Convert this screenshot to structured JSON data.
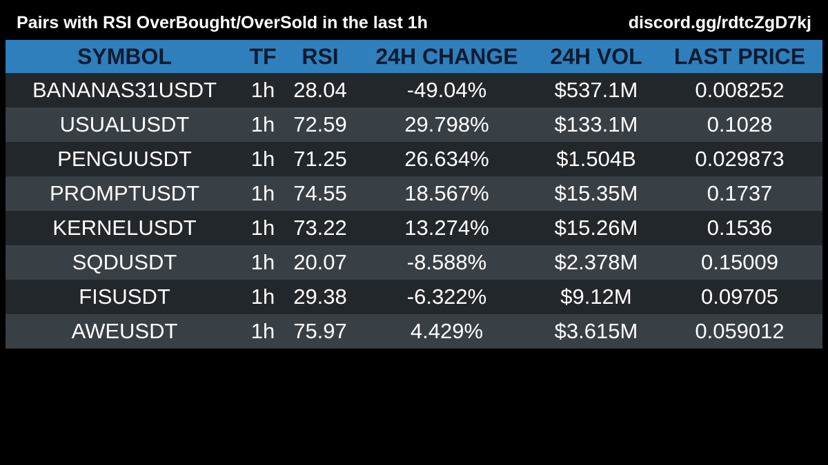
{
  "header": {
    "title": "Pairs with RSI OverBought/OverSold in the last 1h",
    "link": "discord.gg/rdtcZgD7kj"
  },
  "table": {
    "columns": [
      "SYMBOL",
      "TF",
      "RSI",
      "24H CHANGE",
      "24H VOL",
      "LAST PRICE"
    ],
    "rows": [
      {
        "symbol": "BANANAS31USDT",
        "tf": "1h",
        "rsi": "28.04",
        "change": "-49.04%",
        "vol": "$537.1M",
        "price": "0.008252"
      },
      {
        "symbol": "USUALUSDT",
        "tf": "1h",
        "rsi": "72.59",
        "change": "29.798%",
        "vol": "$133.1M",
        "price": "0.1028"
      },
      {
        "symbol": "PENGUUSDT",
        "tf": "1h",
        "rsi": "71.25",
        "change": "26.634%",
        "vol": "$1.504B",
        "price": "0.029873"
      },
      {
        "symbol": "PROMPTUSDT",
        "tf": "1h",
        "rsi": "74.55",
        "change": "18.567%",
        "vol": "$15.35M",
        "price": "0.1737"
      },
      {
        "symbol": "KERNELUSDT",
        "tf": "1h",
        "rsi": "73.22",
        "change": "13.274%",
        "vol": "$15.26M",
        "price": "0.1536"
      },
      {
        "symbol": "SQDUSDT",
        "tf": "1h",
        "rsi": "20.07",
        "change": "-8.588%",
        "vol": "$2.378M",
        "price": "0.15009"
      },
      {
        "symbol": "FISUSDT",
        "tf": "1h",
        "rsi": "29.38",
        "change": "-6.322%",
        "vol": "$9.12M",
        "price": "0.09705"
      },
      {
        "symbol": "AWEUSDT",
        "tf": "1h",
        "rsi": "75.97",
        "change": "4.429%",
        "vol": "$3.615M",
        "price": "0.059012"
      }
    ]
  },
  "colors": {
    "background": "#000000",
    "header_row": "#2f7fbd",
    "header_text": "#0d1b2e",
    "row_dark": "#22272c",
    "row_light": "#383f45",
    "text": "#ffffff"
  }
}
